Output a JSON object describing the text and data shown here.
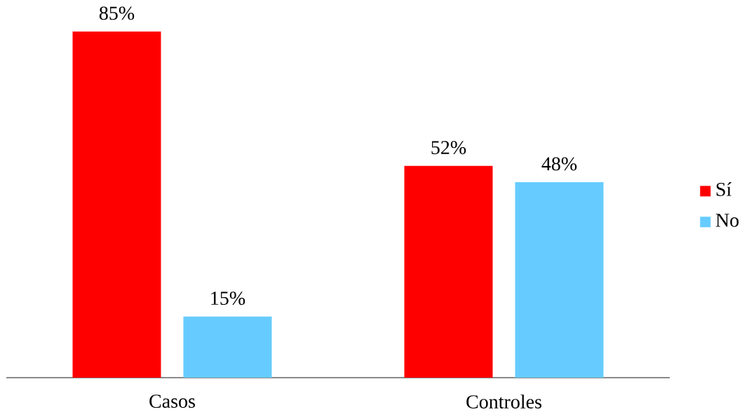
{
  "chart_data": {
    "type": "bar",
    "categories": [
      "Casos",
      "Controles"
    ],
    "series": [
      {
        "name": "Sí",
        "color": "#ff0000",
        "values": [
          85,
          52
        ],
        "value_labels": [
          "85%",
          "52%"
        ]
      },
      {
        "name": "No",
        "color": "#66ccff",
        "values": [
          15,
          48
        ],
        "value_labels": [
          "15%",
          "48%"
        ]
      }
    ],
    "legend": "right"
  }
}
